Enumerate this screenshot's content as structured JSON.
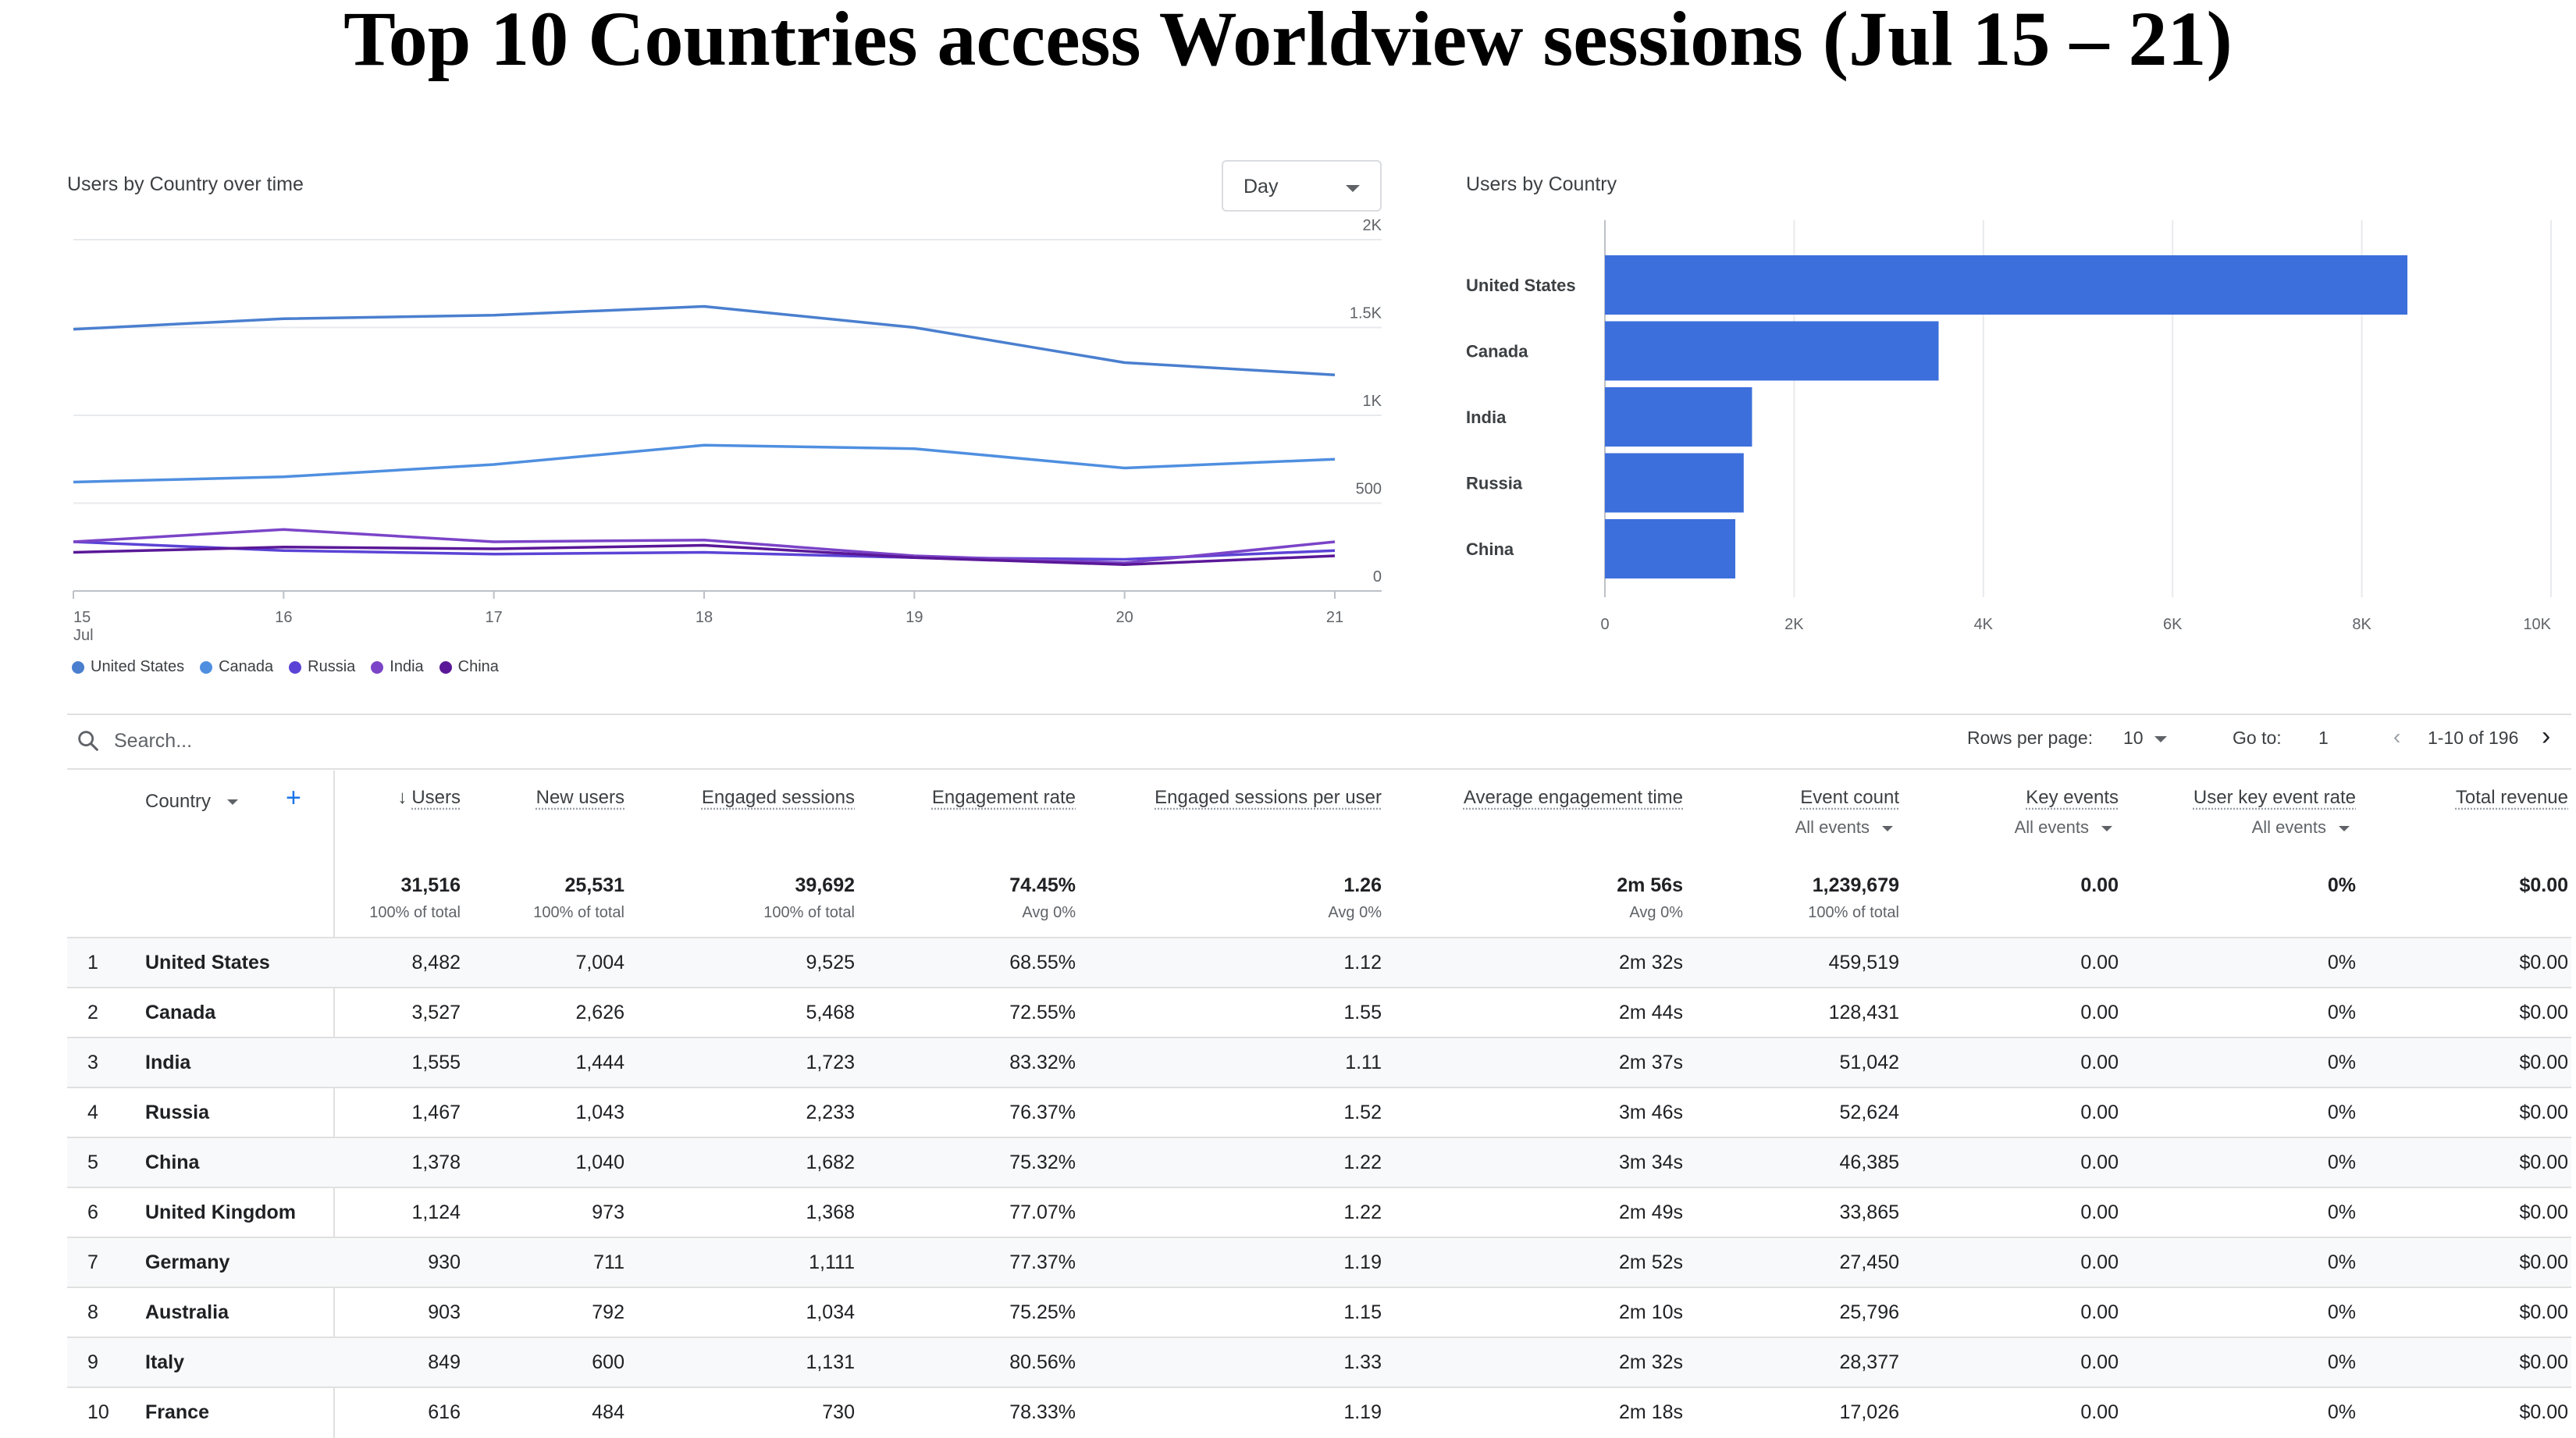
{
  "title": "Top 10 Countries access Worldview sessions (Jul 15 – 21)",
  "line_card": {
    "title": "Users by Country over time",
    "granularity": "Day",
    "legend": [
      {
        "name": "United States",
        "color": "#4a7fcf"
      },
      {
        "name": "Canada",
        "color": "#4f8fe0"
      },
      {
        "name": "Russia",
        "color": "#5b43d6"
      },
      {
        "name": "India",
        "color": "#7b44c8"
      },
      {
        "name": "China",
        "color": "#5a1898"
      }
    ]
  },
  "bar_card": {
    "title": "Users by Country"
  },
  "table": {
    "search_placeholder": "Search...",
    "rows_per_page_label": "Rows per page:",
    "rows_per_page": "10",
    "goto_label": "Go to:",
    "goto_value": "1",
    "range": "1-10 of 196",
    "dimension_header": "Country",
    "columns": [
      {
        "label": "Users",
        "sort": "desc"
      },
      {
        "label": "New users"
      },
      {
        "label": "Engaged sessions"
      },
      {
        "label": "Engagement rate"
      },
      {
        "label": "Engaged sessions per user"
      },
      {
        "label": "Average engagement time"
      },
      {
        "label": "Event count",
        "sub": "All events"
      },
      {
        "label": "Key events",
        "sub": "All events"
      },
      {
        "label": "User key event rate",
        "sub": "All events"
      },
      {
        "label": "Total revenue"
      }
    ],
    "totals": [
      {
        "value": "31,516",
        "sub": "100% of total"
      },
      {
        "value": "25,531",
        "sub": "100% of total"
      },
      {
        "value": "39,692",
        "sub": "100% of total"
      },
      {
        "value": "74.45%",
        "sub": "Avg 0%"
      },
      {
        "value": "1.26",
        "sub": "Avg 0%"
      },
      {
        "value": "2m 56s",
        "sub": "Avg 0%"
      },
      {
        "value": "1,239,679",
        "sub": "100% of total"
      },
      {
        "value": "0.00",
        "sub": ""
      },
      {
        "value": "0%",
        "sub": ""
      },
      {
        "value": "$0.00",
        "sub": ""
      }
    ],
    "rows": [
      {
        "rank": "1",
        "country": "United States",
        "values": [
          "8,482",
          "7,004",
          "9,525",
          "68.55%",
          "1.12",
          "2m 32s",
          "459,519",
          "0.00",
          "0%",
          "$0.00"
        ]
      },
      {
        "rank": "2",
        "country": "Canada",
        "values": [
          "3,527",
          "2,626",
          "5,468",
          "72.55%",
          "1.55",
          "2m 44s",
          "128,431",
          "0.00",
          "0%",
          "$0.00"
        ]
      },
      {
        "rank": "3",
        "country": "India",
        "values": [
          "1,555",
          "1,444",
          "1,723",
          "83.32%",
          "1.11",
          "2m 37s",
          "51,042",
          "0.00",
          "0%",
          "$0.00"
        ]
      },
      {
        "rank": "4",
        "country": "Russia",
        "values": [
          "1,467",
          "1,043",
          "2,233",
          "76.37%",
          "1.52",
          "3m 46s",
          "52,624",
          "0.00",
          "0%",
          "$0.00"
        ]
      },
      {
        "rank": "5",
        "country": "China",
        "values": [
          "1,378",
          "1,040",
          "1,682",
          "75.32%",
          "1.22",
          "3m 34s",
          "46,385",
          "0.00",
          "0%",
          "$0.00"
        ]
      },
      {
        "rank": "6",
        "country": "United Kingdom",
        "values": [
          "1,124",
          "973",
          "1,368",
          "77.07%",
          "1.22",
          "2m 49s",
          "33,865",
          "0.00",
          "0%",
          "$0.00"
        ]
      },
      {
        "rank": "7",
        "country": "Germany",
        "values": [
          "930",
          "711",
          "1,111",
          "77.37%",
          "1.19",
          "2m 52s",
          "27,450",
          "0.00",
          "0%",
          "$0.00"
        ]
      },
      {
        "rank": "8",
        "country": "Australia",
        "values": [
          "903",
          "792",
          "1,034",
          "75.25%",
          "1.15",
          "2m 10s",
          "25,796",
          "0.00",
          "0%",
          "$0.00"
        ]
      },
      {
        "rank": "9",
        "country": "Italy",
        "values": [
          "849",
          "600",
          "1,131",
          "80.56%",
          "1.33",
          "2m 32s",
          "28,377",
          "0.00",
          "0%",
          "$0.00"
        ]
      },
      {
        "rank": "10",
        "country": "France",
        "values": [
          "616",
          "484",
          "730",
          "78.33%",
          "1.19",
          "2m 18s",
          "17,026",
          "0.00",
          "0%",
          "$0.00"
        ]
      }
    ]
  },
  "chart_data": [
    {
      "type": "line",
      "title": "Users by Country over time",
      "x": [
        "15",
        "16",
        "17",
        "18",
        "19",
        "20",
        "21"
      ],
      "x_sublabel": "Jul",
      "ylim": [
        0,
        2000
      ],
      "yticks": [
        "0",
        "500",
        "1K",
        "1.5K",
        "2K"
      ],
      "ytick_values": [
        0,
        500,
        1000,
        1500,
        2000
      ],
      "grid": true,
      "series": [
        {
          "name": "United States",
          "color": "#4a7fcf",
          "values": [
            1490,
            1550,
            1570,
            1620,
            1500,
            1300,
            1230
          ]
        },
        {
          "name": "Canada",
          "color": "#4f8fe0",
          "values": [
            620,
            650,
            720,
            830,
            810,
            700,
            750
          ]
        },
        {
          "name": "Russia",
          "color": "#5b43d6",
          "values": [
            280,
            230,
            210,
            220,
            190,
            180,
            230
          ]
        },
        {
          "name": "India",
          "color": "#7b44c8",
          "values": [
            280,
            350,
            280,
            290,
            200,
            160,
            280
          ]
        },
        {
          "name": "China",
          "color": "#5a1898",
          "values": [
            220,
            250,
            240,
            260,
            190,
            150,
            200
          ]
        }
      ]
    },
    {
      "type": "bar",
      "orientation": "horizontal",
      "title": "Users by Country",
      "categories": [
        "United States",
        "Canada",
        "India",
        "Russia",
        "China"
      ],
      "values": [
        8482,
        3527,
        1555,
        1467,
        1378
      ],
      "xlim": [
        0,
        10000
      ],
      "xticks": [
        "0",
        "2K",
        "4K",
        "6K",
        "8K",
        "10K"
      ],
      "xtick_values": [
        0,
        2000,
        4000,
        6000,
        8000,
        10000
      ],
      "color": "#3d6fdc",
      "grid": true
    }
  ]
}
